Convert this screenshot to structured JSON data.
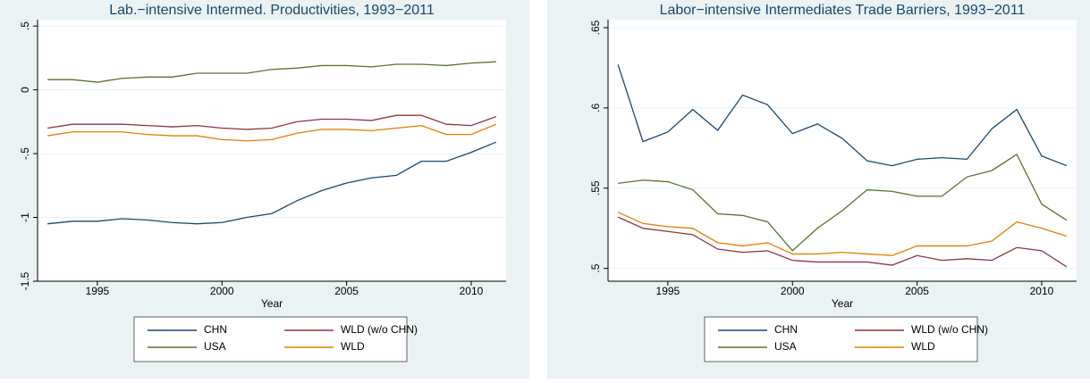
{
  "chart_data": [
    {
      "type": "line",
      "title": "Lab.−intensive Intermed. Productivities, 1993−2011",
      "x_label": "Year",
      "x": [
        1993,
        1994,
        1995,
        1996,
        1997,
        1998,
        1999,
        2000,
        2001,
        2002,
        2003,
        2004,
        2005,
        2006,
        2007,
        2008,
        2009,
        2010,
        2011
      ],
      "xlim": [
        1992.6,
        2011.4
      ],
      "xticks": [
        1995,
        2000,
        2005,
        2010
      ],
      "ylim": [
        -1.5,
        0.55
      ],
      "yticks": [
        {
          "value": 0.5,
          "label": ".5"
        },
        0,
        {
          "value": -0.5,
          "label": "-.5"
        },
        -1,
        -1.5
      ],
      "grid": true,
      "legend": "bottom",
      "series": [
        {
          "name": "CHN",
          "color": "#1a476f",
          "values": [
            -1.05,
            -1.03,
            -1.03,
            -1.01,
            -1.02,
            -1.04,
            -1.05,
            -1.04,
            -1.0,
            -0.97,
            -0.87,
            -0.79,
            -0.73,
            -0.69,
            -0.67,
            -0.56,
            -0.56,
            -0.49,
            -0.41
          ]
        },
        {
          "name": "WLD (w/o CHN)",
          "color": "#90353b",
          "values": [
            -0.3,
            -0.27,
            -0.27,
            -0.27,
            -0.28,
            -0.29,
            -0.28,
            -0.3,
            -0.31,
            -0.3,
            -0.25,
            -0.23,
            -0.23,
            -0.24,
            -0.2,
            -0.2,
            -0.27,
            -0.28,
            -0.21
          ]
        },
        {
          "name": "USA",
          "color": "#55752f",
          "values": [
            0.08,
            0.08,
            0.06,
            0.09,
            0.1,
            0.1,
            0.13,
            0.13,
            0.13,
            0.16,
            0.17,
            0.19,
            0.19,
            0.18,
            0.2,
            0.2,
            0.19,
            0.21,
            0.22
          ]
        },
        {
          "name": "WLD",
          "color": "#e37e00",
          "values": [
            -0.36,
            -0.33,
            -0.33,
            -0.33,
            -0.35,
            -0.36,
            -0.36,
            -0.39,
            -0.4,
            -0.39,
            -0.34,
            -0.31,
            -0.31,
            -0.32,
            -0.3,
            -0.28,
            -0.35,
            -0.35,
            -0.27
          ]
        }
      ]
    },
    {
      "type": "line",
      "title": "Labor−intensive Intermediates Trade Barriers, 1993−2011",
      "x_label": "Year",
      "x": [
        1993,
        1994,
        1995,
        1996,
        1997,
        1998,
        1999,
        2000,
        2001,
        2002,
        2003,
        2004,
        2005,
        2006,
        2007,
        2008,
        2009,
        2010,
        2011
      ],
      "xlim": [
        1992.6,
        2011.4
      ],
      "xticks": [
        1995,
        2000,
        2005,
        2010
      ],
      "ylim": [
        0.492,
        0.655
      ],
      "yticks": [
        {
          "value": 0.5,
          "label": ".5"
        },
        {
          "value": 0.55,
          "label": ".55"
        },
        {
          "value": 0.6,
          "label": ".6"
        },
        {
          "value": 0.65,
          "label": ".65"
        }
      ],
      "grid": true,
      "legend": "bottom",
      "series": [
        {
          "name": "CHN",
          "color": "#1a476f",
          "values": [
            0.627,
            0.579,
            0.585,
            0.599,
            0.586,
            0.608,
            0.602,
            0.584,
            0.59,
            0.581,
            0.567,
            0.564,
            0.568,
            0.569,
            0.568,
            0.587,
            0.599,
            0.57,
            0.564
          ]
        },
        {
          "name": "WLD (w/o CHN)",
          "color": "#90353b",
          "values": [
            0.532,
            0.525,
            0.523,
            0.521,
            0.512,
            0.51,
            0.511,
            0.505,
            0.504,
            0.504,
            0.504,
            0.502,
            0.508,
            0.505,
            0.506,
            0.505,
            0.513,
            0.511,
            0.501
          ]
        },
        {
          "name": "USA",
          "color": "#55752f",
          "values": [
            0.553,
            0.555,
            0.554,
            0.549,
            0.534,
            0.533,
            0.529,
            0.511,
            0.525,
            0.536,
            0.549,
            0.548,
            0.545,
            0.545,
            0.557,
            0.561,
            0.571,
            0.54,
            0.53
          ]
        },
        {
          "name": "WLD",
          "color": "#e37e00",
          "values": [
            0.535,
            0.528,
            0.526,
            0.525,
            0.516,
            0.514,
            0.516,
            0.509,
            0.509,
            0.51,
            0.509,
            0.508,
            0.514,
            0.514,
            0.514,
            0.517,
            0.529,
            0.525,
            0.52
          ]
        }
      ]
    }
  ]
}
